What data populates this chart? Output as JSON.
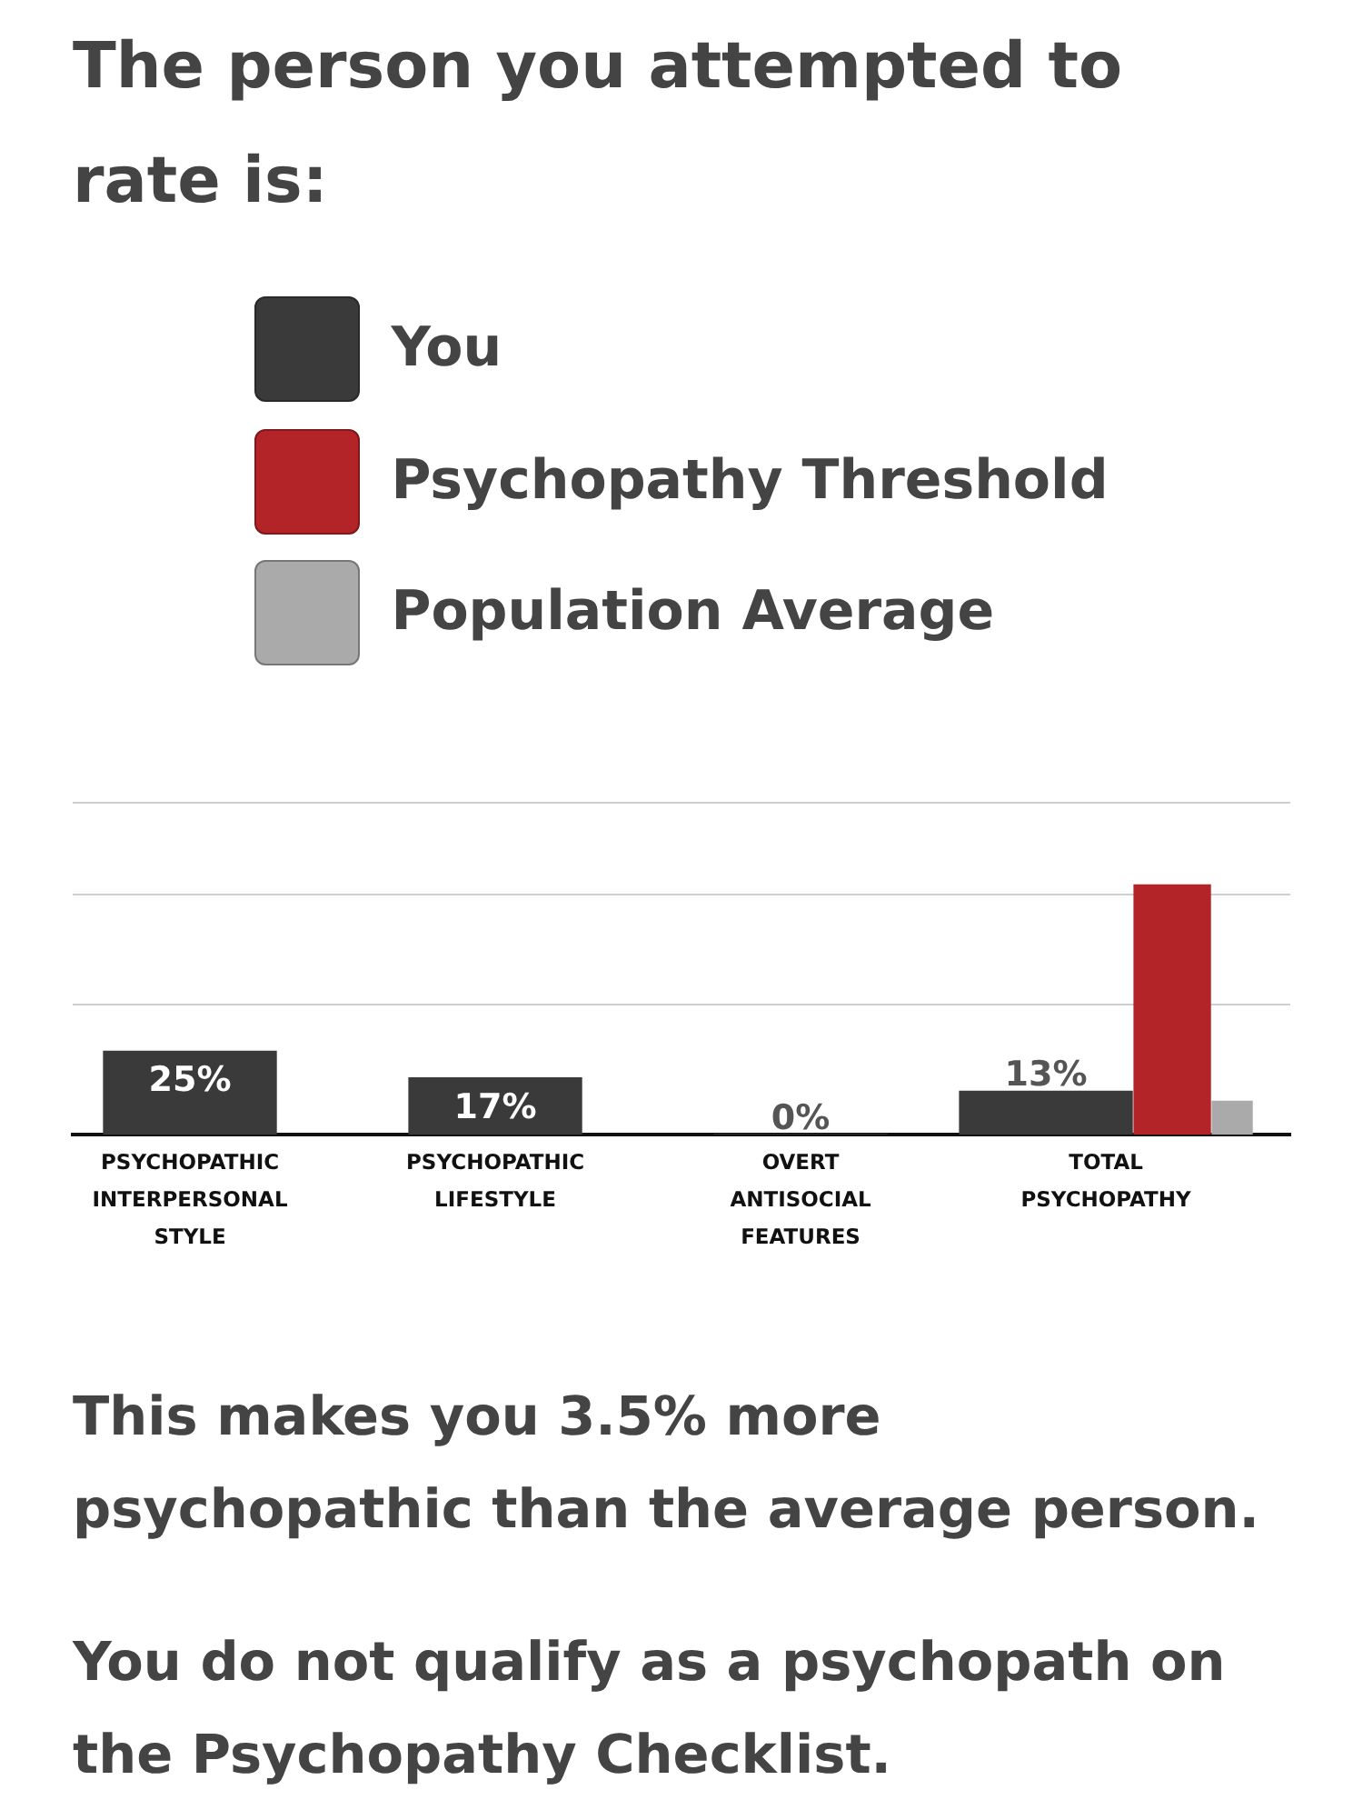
{
  "chart_data": {
    "type": "bar",
    "title": "The person you attempted to rate is:",
    "categories": [
      "PSYCHOPATHIC INTERPERSONAL STYLE",
      "PSYCHOPATHIC LIFESTYLE",
      "OVERT ANTISOCIAL FEATURES",
      "TOTAL PSYCHOPATHY"
    ],
    "series": [
      {
        "name": "You",
        "color": "#3a3a3a",
        "values": [
          25,
          17,
          0,
          13
        ],
        "value_labels": [
          "25%",
          "17%",
          "0%",
          "13%"
        ]
      },
      {
        "name": "Psychopathy Threshold",
        "color": "#b32429",
        "values": [
          null,
          null,
          null,
          75
        ]
      },
      {
        "name": "Population Average",
        "color": "#aaaaaa",
        "values": [
          null,
          null,
          null,
          10
        ]
      }
    ],
    "ylim": [
      0,
      100
    ],
    "yticks": [
      {
        "value": 39,
        "label": null
      },
      {
        "value": 72,
        "label": null
      }
    ],
    "grid": "y",
    "tick_labels": "x",
    "legend": "top",
    "annotations": [
      "This makes you 3.5% more psychopathic than the average person.",
      "You do not qualify as a psychopath on the Psychopathy Checklist."
    ]
  }
}
